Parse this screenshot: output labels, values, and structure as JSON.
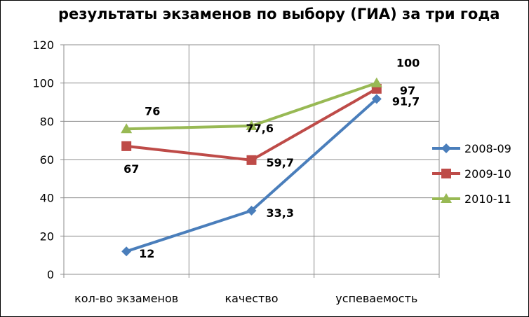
{
  "chart_data": {
    "type": "line",
    "title": "результаты экзаменов по выбору (ГИА) за три года",
    "xlabel": "",
    "ylabel": "",
    "categories": [
      "кол-во экзаменов",
      "качество",
      "успеваемость"
    ],
    "ylim": [
      0,
      120
    ],
    "yticks": [
      "0",
      "20",
      "40",
      "60",
      "80",
      "100",
      "120"
    ],
    "grid": true,
    "legend_position": "right",
    "series": [
      {
        "name": "2008-09",
        "color": "#4a7ebb",
        "marker": "diamond",
        "values": [
          12,
          33.3,
          91.7
        ],
        "labels": [
          "12",
          "33,3",
          "91,7"
        ]
      },
      {
        "name": "2009-10",
        "color": "#be4b48",
        "marker": "square",
        "values": [
          67,
          59.7,
          97
        ],
        "labels": [
          "67",
          "59,7",
          "97"
        ]
      },
      {
        "name": "2010-11",
        "color": "#98b954",
        "marker": "triangle",
        "values": [
          76,
          77.6,
          100
        ],
        "labels": [
          "76",
          "77,6",
          "100"
        ]
      }
    ]
  }
}
